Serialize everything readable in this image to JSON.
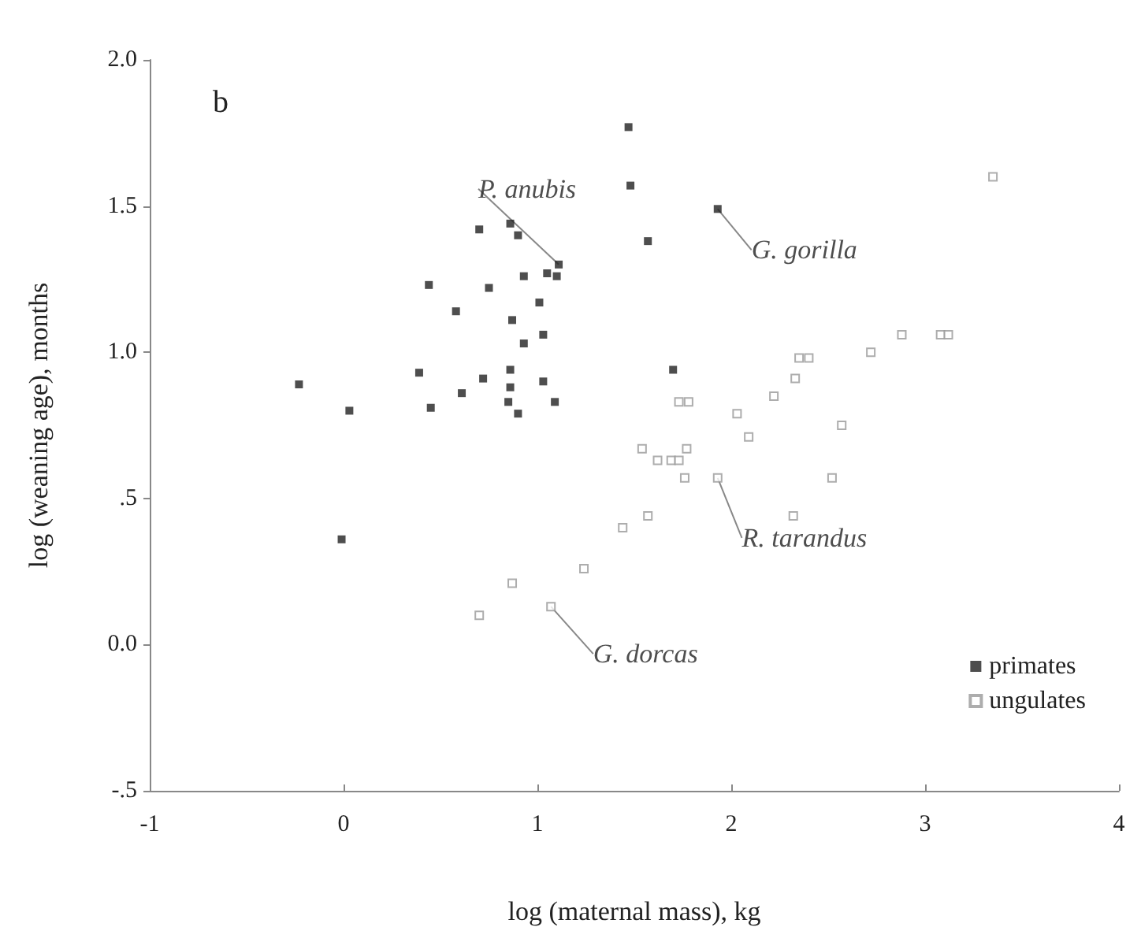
{
  "chart_data": {
    "type": "scatter",
    "xlabel": "log (maternal mass), kg",
    "ylabel": "log (weaning age), months",
    "annotations": [
      "b",
      {
        "text": "P. anubis",
        "x": 1.11,
        "y": 1.3
      },
      {
        "text": "G. gorilla",
        "x": 1.93,
        "y": 1.49
      },
      {
        "text": "R. tarandus",
        "x": 1.93,
        "y": 0.57
      },
      {
        "text": "G. dorcas",
        "x": 1.07,
        "y": 0.13
      }
    ],
    "series": [
      {
        "name": "primates",
        "color": "#222222",
        "x": [
          0.7,
          0.86,
          0.9,
          0.44,
          0.75,
          0.93,
          1.05,
          1.1,
          1.11,
          0.58,
          1.01,
          0.87,
          0.93,
          1.03,
          -0.23,
          0.03,
          0.39,
          0.72,
          0.86,
          1.03,
          0.61,
          0.86,
          0.45,
          0.85,
          0.9,
          1.09,
          -0.01,
          1.47,
          1.48,
          1.57,
          1.93,
          1.7
        ],
        "values": [
          1.42,
          1.44,
          1.4,
          1.23,
          1.22,
          1.26,
          1.27,
          1.26,
          1.3,
          1.14,
          1.17,
          1.11,
          1.03,
          1.06,
          0.89,
          0.8,
          0.93,
          0.91,
          0.94,
          0.9,
          0.86,
          0.88,
          0.81,
          0.83,
          0.79,
          0.83,
          0.36,
          1.77,
          1.57,
          1.38,
          1.49,
          0.94
        ]
      },
      {
        "name": "ungulates",
        "color": "#999999",
        "x": [
          3.35,
          2.88,
          3.08,
          3.12,
          2.72,
          2.35,
          2.4,
          2.33,
          2.22,
          2.03,
          1.73,
          1.78,
          2.09,
          2.57,
          1.77,
          1.54,
          1.62,
          1.69,
          1.73,
          1.76,
          1.93,
          2.52,
          1.57,
          2.32,
          1.44,
          1.24,
          0.87,
          1.07,
          0.7
        ],
        "values": [
          1.6,
          1.06,
          1.06,
          1.06,
          1.0,
          0.98,
          0.98,
          0.91,
          0.85,
          0.79,
          0.83,
          0.83,
          0.71,
          0.75,
          0.67,
          0.67,
          0.63,
          0.63,
          0.63,
          0.57,
          0.57,
          0.57,
          0.44,
          0.44,
          0.4,
          0.26,
          0.21,
          0.13,
          0.1
        ]
      }
    ],
    "xlim": [
      -1,
      4
    ],
    "xticks": [
      -1,
      0,
      1,
      2,
      3,
      4
    ],
    "ylim": [
      -0.5,
      2.0
    ],
    "yticks": [
      {
        "value": -0.5,
        "label": "-.5"
      },
      {
        "value": 0,
        "label": "0.0"
      },
      {
        "value": 0.5,
        "label": ".5"
      },
      {
        "value": 1,
        "label": "1.0"
      },
      {
        "value": 1.5,
        "label": "1.5"
      },
      {
        "value": 2,
        "label": "2.0"
      }
    ],
    "grid": false,
    "legend": "bottom right",
    "marker": "square"
  }
}
